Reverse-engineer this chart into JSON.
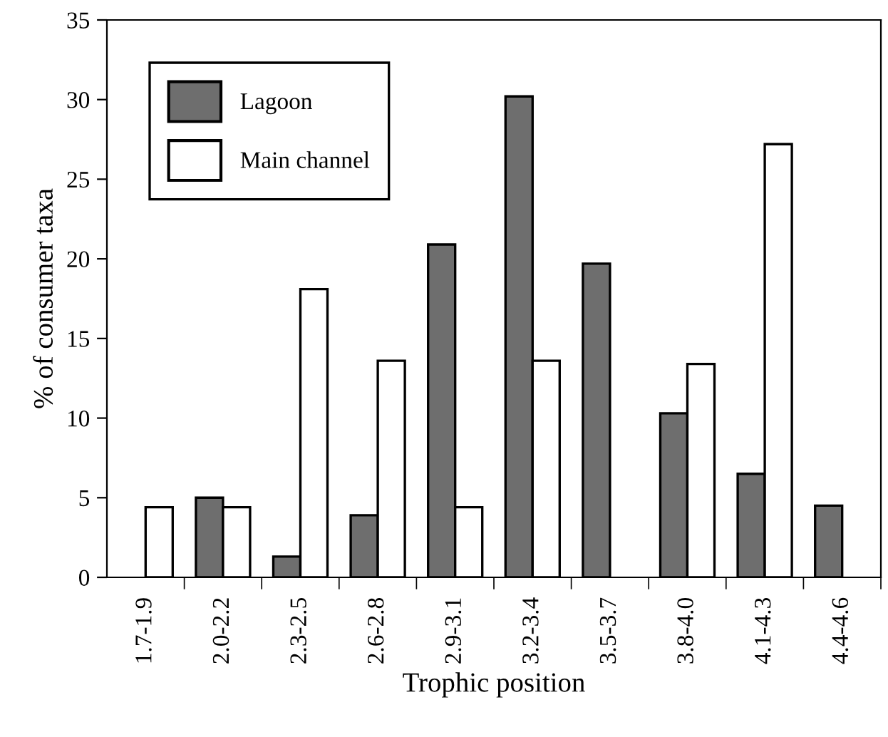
{
  "chart_data": {
    "type": "bar",
    "xlabel": "Trophic position",
    "ylabel": "% of consumer taxa",
    "categories": [
      "1.7-1.9",
      "2.0-2.2",
      "2.3-2.5",
      "2.6-2.8",
      "2.9-3.1",
      "3.2-3.4",
      "3.5-3.7",
      "3.8-4.0",
      "4.1-4.3",
      "4.4-4.6"
    ],
    "series": [
      {
        "name": "Lagoon",
        "color": "#6e6e6e",
        "values": [
          0,
          5.0,
          1.3,
          3.9,
          20.9,
          30.2,
          19.7,
          10.3,
          6.5,
          4.5
        ]
      },
      {
        "name": "Main channel",
        "color": "#ffffff",
        "values": [
          4.4,
          4.4,
          18.1,
          13.6,
          4.4,
          13.6,
          0,
          13.4,
          27.2,
          0
        ]
      }
    ],
    "ylim": [
      0,
      35
    ],
    "yticks": [
      0,
      5,
      10,
      15,
      20,
      25,
      30,
      35
    ],
    "grid": false,
    "legend": "top left"
  }
}
